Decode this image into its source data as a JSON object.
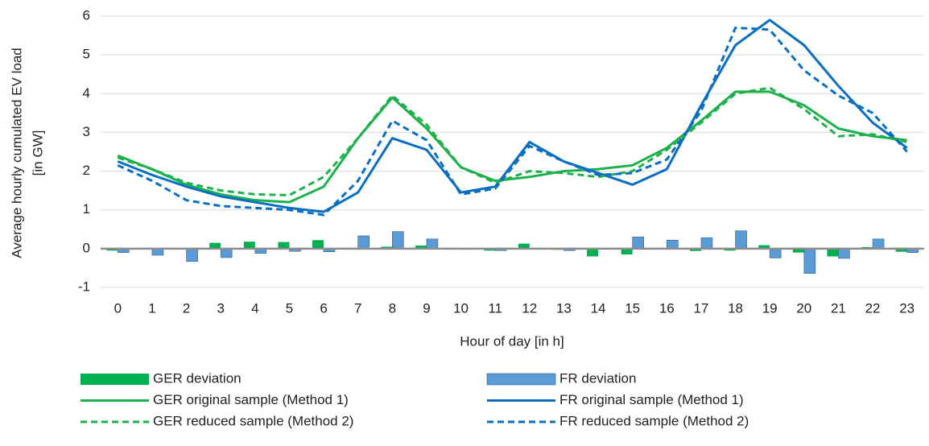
{
  "chart_data": {
    "type": "combo",
    "y_label": [
      "Average hourly cumulated EV load",
      "[in GW]"
    ],
    "x_label": "Hour of day [in h]",
    "categories": [
      "0",
      "1",
      "2",
      "3",
      "4",
      "5",
      "6",
      "7",
      "8",
      "9",
      "10",
      "11",
      "12",
      "13",
      "14",
      "15",
      "16",
      "17",
      "18",
      "19",
      "20",
      "21",
      "22",
      "23"
    ],
    "ylim": [
      -1,
      6
    ],
    "yticks": [
      -1,
      0,
      1,
      2,
      3,
      4,
      5,
      6
    ],
    "grid": true,
    "series": [
      {
        "name": "GER deviation",
        "type": "bar",
        "color": "#00b050",
        "values": [
          -0.05,
          0.02,
          0.02,
          0.15,
          0.18,
          0.17,
          0.22,
          -0.02,
          0.05,
          0.08,
          0.0,
          -0.05,
          0.13,
          -0.03,
          -0.2,
          -0.15,
          0.0,
          -0.06,
          -0.05,
          0.09,
          -0.1,
          -0.2,
          0.04,
          -0.08
        ]
      },
      {
        "name": "FR deviation",
        "type": "bar",
        "color": "#5b9bd5",
        "values": [
          -0.1,
          -0.17,
          -0.33,
          -0.23,
          -0.12,
          -0.07,
          -0.08,
          0.33,
          0.44,
          0.25,
          -0.02,
          -0.05,
          0.0,
          -0.05,
          0.0,
          0.3,
          0.22,
          0.28,
          0.46,
          -0.24,
          -0.64,
          -0.25,
          0.25,
          -0.1
        ]
      },
      {
        "name": "GER original sample (Method 1)",
        "type": "line",
        "color": "#1db14b",
        "dashed": false,
        "values": [
          2.4,
          2.05,
          1.65,
          1.4,
          1.25,
          1.2,
          1.6,
          2.85,
          3.9,
          3.1,
          2.1,
          1.75,
          1.85,
          2.0,
          2.05,
          2.15,
          2.6,
          3.3,
          4.05,
          4.05,
          3.7,
          3.1,
          2.9,
          2.8
        ]
      },
      {
        "name": "FR original sample (Method 1)",
        "type": "line",
        "color": "#0a6fc2",
        "dashed": false,
        "values": [
          2.25,
          1.9,
          1.6,
          1.35,
          1.2,
          1.05,
          0.95,
          1.45,
          2.85,
          2.55,
          1.45,
          1.6,
          2.75,
          2.25,
          1.95,
          1.65,
          2.05,
          3.7,
          5.25,
          5.9,
          5.25,
          4.2,
          3.25,
          2.6
        ]
      },
      {
        "name": "GER reduced sample (Method 2)",
        "type": "line",
        "color": "#1db14b",
        "dashed": true,
        "values": [
          2.35,
          2.05,
          1.7,
          1.5,
          1.4,
          1.38,
          1.85,
          2.85,
          3.95,
          3.2,
          2.1,
          1.7,
          2.0,
          1.95,
          1.85,
          2.0,
          2.55,
          3.25,
          4.0,
          4.15,
          3.6,
          2.9,
          2.95,
          2.75
        ]
      },
      {
        "name": "FR reduced sample (Method 2)",
        "type": "line",
        "color": "#0a6fc2",
        "dashed": true,
        "values": [
          2.15,
          1.75,
          1.25,
          1.1,
          1.05,
          1.0,
          0.87,
          1.75,
          3.3,
          2.8,
          1.4,
          1.55,
          2.65,
          2.25,
          1.9,
          1.95,
          2.3,
          3.55,
          5.7,
          5.65,
          4.6,
          3.95,
          3.5,
          2.5
        ]
      }
    ]
  }
}
